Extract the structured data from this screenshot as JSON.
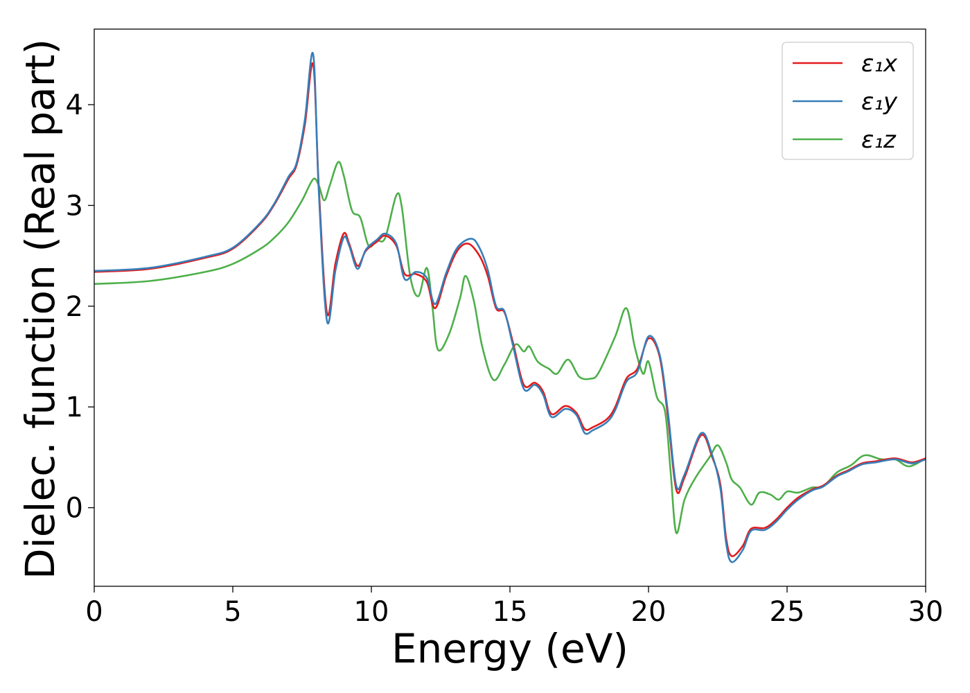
{
  "chart_data": {
    "type": "line",
    "title": "",
    "xlabel": "Energy (eV)",
    "ylabel": "Dielec. function (Real part)",
    "xlim": [
      0,
      30
    ],
    "ylim": [
      -0.78,
      4.75
    ],
    "xticks": [
      0,
      5,
      10,
      15,
      20,
      25,
      30
    ],
    "yticks": [
      0,
      1,
      2,
      3,
      4
    ],
    "grid": false,
    "legend_position": "top-right",
    "series": [
      {
        "name": "ε₁x",
        "color": "#e41a1c",
        "points": [
          [
            0,
            2.34
          ],
          [
            2,
            2.37
          ],
          [
            4,
            2.48
          ],
          [
            5,
            2.57
          ],
          [
            6,
            2.82
          ],
          [
            6.5,
            3.01
          ],
          [
            7,
            3.26
          ],
          [
            7.3,
            3.4
          ],
          [
            7.6,
            3.8
          ],
          [
            7.9,
            4.4
          ],
          [
            8.1,
            3.2
          ],
          [
            8.4,
            1.93
          ],
          [
            8.7,
            2.42
          ],
          [
            9.0,
            2.72
          ],
          [
            9.2,
            2.62
          ],
          [
            9.5,
            2.4
          ],
          [
            9.8,
            2.55
          ],
          [
            10.2,
            2.64
          ],
          [
            10.5,
            2.7
          ],
          [
            10.9,
            2.6
          ],
          [
            11.2,
            2.32
          ],
          [
            11.6,
            2.32
          ],
          [
            12.0,
            2.24
          ],
          [
            12.3,
            1.98
          ],
          [
            12.7,
            2.3
          ],
          [
            13.1,
            2.55
          ],
          [
            13.5,
            2.62
          ],
          [
            13.9,
            2.5
          ],
          [
            14.2,
            2.3
          ],
          [
            14.5,
            1.98
          ],
          [
            14.8,
            1.94
          ],
          [
            15.1,
            1.65
          ],
          [
            15.5,
            1.22
          ],
          [
            15.9,
            1.24
          ],
          [
            16.2,
            1.15
          ],
          [
            16.5,
            0.93
          ],
          [
            17.0,
            1.01
          ],
          [
            17.4,
            0.94
          ],
          [
            17.7,
            0.78
          ],
          [
            18.0,
            0.8
          ],
          [
            18.5,
            0.88
          ],
          [
            18.8,
            1.0
          ],
          [
            19.2,
            1.28
          ],
          [
            19.6,
            1.38
          ],
          [
            20.0,
            1.68
          ],
          [
            20.4,
            1.5
          ],
          [
            20.7,
            0.9
          ],
          [
            21.0,
            0.18
          ],
          [
            21.3,
            0.3
          ],
          [
            21.9,
            0.72
          ],
          [
            22.3,
            0.5
          ],
          [
            22.6,
            0.22
          ],
          [
            22.8,
            -0.3
          ],
          [
            23.0,
            -0.48
          ],
          [
            23.4,
            -0.38
          ],
          [
            23.7,
            -0.21
          ],
          [
            24.2,
            -0.2
          ],
          [
            24.6,
            -0.12
          ],
          [
            25.0,
            0.0
          ],
          [
            25.4,
            0.1
          ],
          [
            25.9,
            0.18
          ],
          [
            26.3,
            0.22
          ],
          [
            26.8,
            0.32
          ],
          [
            27.2,
            0.37
          ],
          [
            27.7,
            0.44
          ],
          [
            28.2,
            0.46
          ],
          [
            28.9,
            0.49
          ],
          [
            29.5,
            0.45
          ],
          [
            30,
            0.49
          ]
        ]
      },
      {
        "name": "ε₁y",
        "color": "#377eb8",
        "points": [
          [
            0,
            2.35
          ],
          [
            2,
            2.38
          ],
          [
            4,
            2.49
          ],
          [
            5,
            2.58
          ],
          [
            6,
            2.83
          ],
          [
            6.5,
            3.02
          ],
          [
            7,
            3.28
          ],
          [
            7.3,
            3.42
          ],
          [
            7.6,
            3.85
          ],
          [
            7.9,
            4.5
          ],
          [
            8.1,
            3.15
          ],
          [
            8.4,
            1.85
          ],
          [
            8.7,
            2.35
          ],
          [
            9.0,
            2.68
          ],
          [
            9.2,
            2.6
          ],
          [
            9.5,
            2.37
          ],
          [
            9.8,
            2.56
          ],
          [
            10.2,
            2.66
          ],
          [
            10.5,
            2.72
          ],
          [
            10.9,
            2.62
          ],
          [
            11.2,
            2.27
          ],
          [
            11.6,
            2.34
          ],
          [
            12.0,
            2.28
          ],
          [
            12.3,
            2.02
          ],
          [
            12.7,
            2.33
          ],
          [
            13.1,
            2.58
          ],
          [
            13.6,
            2.67
          ],
          [
            13.9,
            2.58
          ],
          [
            14.2,
            2.36
          ],
          [
            14.5,
            2.0
          ],
          [
            14.8,
            1.95
          ],
          [
            15.1,
            1.62
          ],
          [
            15.5,
            1.18
          ],
          [
            15.9,
            1.22
          ],
          [
            16.2,
            1.12
          ],
          [
            16.5,
            0.9
          ],
          [
            17.0,
            0.98
          ],
          [
            17.4,
            0.92
          ],
          [
            17.7,
            0.74
          ],
          [
            18.0,
            0.77
          ],
          [
            18.5,
            0.85
          ],
          [
            18.8,
            0.97
          ],
          [
            19.2,
            1.25
          ],
          [
            19.6,
            1.35
          ],
          [
            20.0,
            1.7
          ],
          [
            20.4,
            1.52
          ],
          [
            20.7,
            0.95
          ],
          [
            21.0,
            0.22
          ],
          [
            21.3,
            0.33
          ],
          [
            21.9,
            0.74
          ],
          [
            22.3,
            0.52
          ],
          [
            22.6,
            0.18
          ],
          [
            22.8,
            -0.35
          ],
          [
            23.0,
            -0.54
          ],
          [
            23.4,
            -0.42
          ],
          [
            23.7,
            -0.23
          ],
          [
            24.2,
            -0.22
          ],
          [
            24.6,
            -0.14
          ],
          [
            25.0,
            -0.02
          ],
          [
            25.4,
            0.08
          ],
          [
            25.9,
            0.17
          ],
          [
            26.3,
            0.21
          ],
          [
            26.8,
            0.31
          ],
          [
            27.2,
            0.36
          ],
          [
            27.7,
            0.43
          ],
          [
            28.2,
            0.45
          ],
          [
            28.9,
            0.48
          ],
          [
            29.5,
            0.44
          ],
          [
            30,
            0.48
          ]
        ]
      },
      {
        "name": "ε₁z",
        "color": "#4daf4a",
        "points": [
          [
            0,
            2.22
          ],
          [
            2,
            2.25
          ],
          [
            4,
            2.34
          ],
          [
            5,
            2.42
          ],
          [
            6,
            2.57
          ],
          [
            6.5,
            2.68
          ],
          [
            7,
            2.83
          ],
          [
            7.5,
            3.05
          ],
          [
            7.9,
            3.26
          ],
          [
            8.1,
            3.2
          ],
          [
            8.3,
            3.05
          ],
          [
            8.5,
            3.2
          ],
          [
            8.8,
            3.43
          ],
          [
            9.0,
            3.3
          ],
          [
            9.3,
            2.95
          ],
          [
            9.6,
            2.88
          ],
          [
            9.9,
            2.6
          ],
          [
            10.2,
            2.65
          ],
          [
            10.5,
            2.68
          ],
          [
            10.9,
            3.1
          ],
          [
            11.1,
            2.98
          ],
          [
            11.4,
            2.3
          ],
          [
            11.7,
            2.1
          ],
          [
            12.0,
            2.38
          ],
          [
            12.2,
            2.0
          ],
          [
            12.4,
            1.57
          ],
          [
            12.8,
            1.72
          ],
          [
            13.2,
            2.08
          ],
          [
            13.4,
            2.3
          ],
          [
            13.7,
            2.05
          ],
          [
            14.0,
            1.6
          ],
          [
            14.4,
            1.27
          ],
          [
            14.8,
            1.42
          ],
          [
            15.2,
            1.62
          ],
          [
            15.5,
            1.55
          ],
          [
            15.7,
            1.6
          ],
          [
            16.0,
            1.45
          ],
          [
            16.4,
            1.38
          ],
          [
            16.7,
            1.33
          ],
          [
            17.1,
            1.47
          ],
          [
            17.5,
            1.3
          ],
          [
            17.9,
            1.28
          ],
          [
            18.2,
            1.34
          ],
          [
            18.8,
            1.7
          ],
          [
            19.2,
            1.98
          ],
          [
            19.5,
            1.6
          ],
          [
            19.8,
            1.33
          ],
          [
            20.0,
            1.45
          ],
          [
            20.3,
            1.1
          ],
          [
            20.6,
            0.95
          ],
          [
            20.8,
            0.35
          ],
          [
            21.0,
            -0.25
          ],
          [
            21.3,
            0.08
          ],
          [
            21.7,
            0.3
          ],
          [
            22.2,
            0.5
          ],
          [
            22.5,
            0.62
          ],
          [
            22.8,
            0.45
          ],
          [
            23.0,
            0.28
          ],
          [
            23.3,
            0.2
          ],
          [
            23.7,
            0.03
          ],
          [
            24.0,
            0.15
          ],
          [
            24.4,
            0.13
          ],
          [
            24.7,
            0.08
          ],
          [
            25.0,
            0.16
          ],
          [
            25.4,
            0.15
          ],
          [
            25.9,
            0.2
          ],
          [
            26.3,
            0.21
          ],
          [
            26.8,
            0.35
          ],
          [
            27.3,
            0.42
          ],
          [
            27.8,
            0.52
          ],
          [
            28.4,
            0.48
          ],
          [
            28.9,
            0.48
          ],
          [
            29.4,
            0.41
          ],
          [
            30,
            0.49
          ]
        ]
      }
    ]
  }
}
